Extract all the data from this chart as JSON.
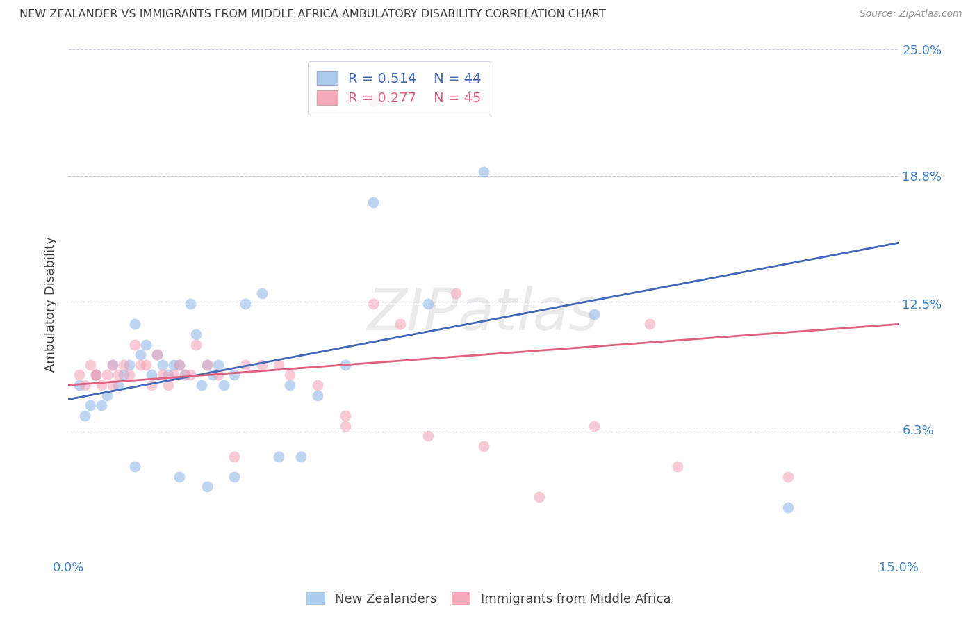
{
  "title": "NEW ZEALANDER VS IMMIGRANTS FROM MIDDLE AFRICA AMBULATORY DISABILITY CORRELATION CHART",
  "source": "Source: ZipAtlas.com",
  "ylabel": "Ambulatory Disability",
  "xmin": 0.0,
  "xmax": 15.0,
  "ymin": 0.0,
  "ymax": 25.0,
  "yticks": [
    0.0,
    6.3,
    12.5,
    18.8,
    25.0
  ],
  "ytick_labels": [
    "",
    "6.3%",
    "12.5%",
    "18.8%",
    "25.0%"
  ],
  "xtick_positions": [
    0.0,
    15.0
  ],
  "xtick_labels": [
    "0.0%",
    "15.0%"
  ],
  "blue_color": "#8ab4e8",
  "pink_color": "#f4a0b5",
  "blue_line_color": "#4169b8",
  "pink_line_color": "#e06080",
  "blue_label": "New Zealanders",
  "pink_label": "Immigrants from Middle Africa",
  "blue_R": "0.514",
  "blue_N": "44",
  "pink_R": "0.277",
  "pink_N": "45",
  "watermark": "ZIPatlas",
  "title_color": "#404040",
  "axis_label_color": "#404040",
  "tick_color": "#4488CC",
  "grid_color": "#CCCCDD",
  "background_color": "#FFFFFF",
  "legend_box_color_blue": "#aaccee",
  "legend_box_color_pink": "#f4aabb",
  "blue_scatter_x": [
    0.2,
    0.3,
    0.4,
    0.5,
    0.6,
    0.7,
    0.8,
    0.9,
    1.0,
    1.1,
    1.2,
    1.3,
    1.4,
    1.5,
    1.6,
    1.7,
    1.8,
    1.9,
    2.0,
    2.1,
    2.2,
    2.3,
    2.4,
    2.5,
    2.6,
    2.7,
    2.8,
    3.0,
    3.2,
    3.5,
    4.0,
    4.5,
    5.0,
    5.5,
    6.5,
    7.5,
    9.5,
    13.0,
    1.2,
    2.0,
    2.5,
    3.0,
    3.8,
    4.2
  ],
  "blue_scatter_y": [
    8.5,
    7.0,
    7.5,
    9.0,
    7.5,
    8.0,
    9.5,
    8.5,
    9.0,
    9.5,
    11.5,
    10.0,
    10.5,
    9.0,
    10.0,
    9.5,
    9.0,
    9.5,
    9.5,
    9.0,
    12.5,
    11.0,
    8.5,
    9.5,
    9.0,
    9.5,
    8.5,
    9.0,
    12.5,
    13.0,
    8.5,
    8.0,
    9.5,
    17.5,
    12.5,
    19.0,
    12.0,
    2.5,
    4.5,
    4.0,
    3.5,
    4.0,
    5.0,
    5.0
  ],
  "pink_scatter_x": [
    0.2,
    0.3,
    0.4,
    0.5,
    0.6,
    0.7,
    0.8,
    0.9,
    1.0,
    1.1,
    1.2,
    1.3,
    1.4,
    1.5,
    1.6,
    1.7,
    1.8,
    1.9,
    2.0,
    2.1,
    2.2,
    2.3,
    2.5,
    2.7,
    3.0,
    3.2,
    3.5,
    3.8,
    4.0,
    4.5,
    5.0,
    5.5,
    6.5,
    7.0,
    7.5,
    8.5,
    9.5,
    10.5,
    11.0,
    13.0,
    5.0,
    5.5,
    6.0,
    0.5,
    0.8
  ],
  "pink_scatter_y": [
    9.0,
    8.5,
    9.5,
    9.0,
    8.5,
    9.0,
    8.5,
    9.0,
    9.5,
    9.0,
    10.5,
    9.5,
    9.5,
    8.5,
    10.0,
    9.0,
    8.5,
    9.0,
    9.5,
    9.0,
    9.0,
    10.5,
    9.5,
    9.0,
    5.0,
    9.5,
    9.5,
    9.5,
    9.0,
    8.5,
    6.5,
    22.5,
    6.0,
    13.0,
    5.5,
    3.0,
    6.5,
    11.5,
    4.5,
    4.0,
    7.0,
    12.5,
    11.5,
    9.0,
    9.5
  ],
  "blue_line_x0": 0.0,
  "blue_line_x1": 15.0,
  "blue_line_y0": 7.8,
  "blue_line_y1": 15.5,
  "pink_line_x0": 0.0,
  "pink_line_x1": 15.0,
  "pink_line_y0": 8.5,
  "pink_line_y1": 11.5
}
